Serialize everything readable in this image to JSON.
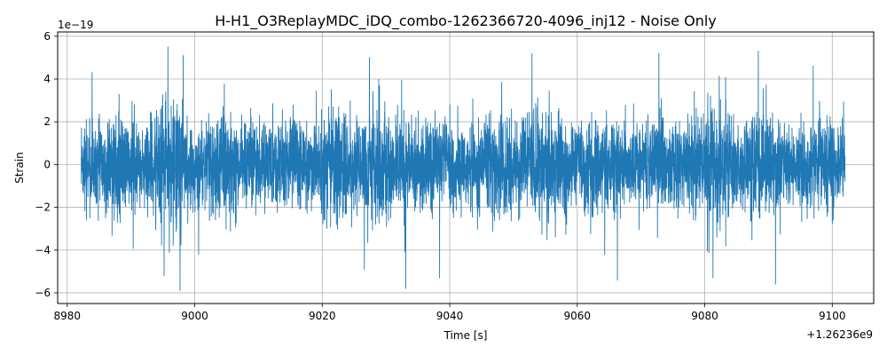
{
  "chart_data": {
    "type": "line",
    "title": "H-H1_O3ReplayMDC_iDQ_combo-1262366720-4096_inj12 - Noise Only",
    "xlabel": "Time [s]",
    "ylabel": "Strain",
    "x_offset_label": "+1.26236e9",
    "y_scale_label": "1e−19",
    "xlim": [
      8978.5,
      9106.5
    ],
    "ylim": [
      -6.5,
      6.2
    ],
    "xticks": [
      8980,
      9000,
      9020,
      9040,
      9060,
      9080,
      9100
    ],
    "xtick_labels": [
      "8980",
      "9000",
      "9020",
      "9040",
      "9060",
      "9080",
      "9100"
    ],
    "yticks": [
      -6,
      -4,
      -2,
      0,
      2,
      4,
      6
    ],
    "ytick_labels": [
      "−6",
      "−4",
      "−2",
      "0",
      "2",
      "4",
      "6"
    ],
    "grid": true,
    "series": [
      {
        "color": "#1f77b4",
        "x_range": [
          8982.2,
          9102.0
        ],
        "typical_envelope": [
          -3.0,
          3.0
        ],
        "peaks": [
          {
            "x": 8995.8,
            "y": 5.5
          },
          {
            "x": 8998.2,
            "y": 5.1
          },
          {
            "x": 8983.9,
            "y": 4.3
          },
          {
            "x": 9027.4,
            "y": 5.0
          },
          {
            "x": 9052.9,
            "y": 5.2
          },
          {
            "x": 9072.8,
            "y": 5.2
          },
          {
            "x": 9088.4,
            "y": 5.3
          },
          {
            "x": 9097.0,
            "y": 4.6
          }
        ],
        "troughs": [
          {
            "x": 8995.2,
            "y": -5.2
          },
          {
            "x": 8997.7,
            "y": -5.9
          },
          {
            "x": 9000.6,
            "y": -4.2
          },
          {
            "x": 9026.6,
            "y": -4.9
          },
          {
            "x": 9033.1,
            "y": -5.8
          },
          {
            "x": 9038.4,
            "y": -5.3
          },
          {
            "x": 9066.3,
            "y": -5.4
          },
          {
            "x": 9081.3,
            "y": -5.3
          },
          {
            "x": 9091.1,
            "y": -5.6
          }
        ]
      }
    ]
  }
}
